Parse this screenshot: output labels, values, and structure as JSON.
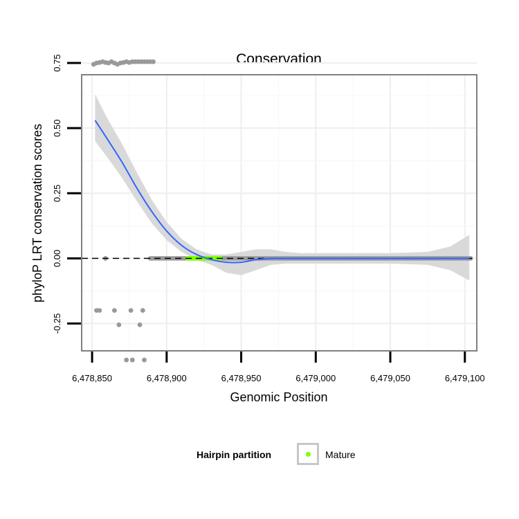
{
  "chart_data": {
    "type": "scatter",
    "title": "Conservation",
    "xlabel": "Genomic Position",
    "ylabel": "phyloP LRT conservation scores",
    "xlim": [
      6478843,
      6479108
    ],
    "ylim": [
      -0.355,
      0.705
    ],
    "x_ticks": [
      6478850,
      6478900,
      6478950,
      6479000,
      6479050,
      6479100
    ],
    "x_tick_labels": [
      "6,478,850",
      "6,478,900",
      "6,478,950",
      "6,479,000",
      "6,479,050",
      "6,479,100"
    ],
    "y_ticks": [
      -0.25,
      0.0,
      0.25,
      0.5,
      0.75
    ],
    "y_tick_labels": [
      "-0.25",
      "0.00",
      "0.25",
      "0.50",
      "0.75"
    ],
    "grid": true,
    "reference_line": {
      "y": 0,
      "style": "dashed",
      "color": "#000000"
    },
    "point_color": "#999999",
    "mature_color": "#7FFF00",
    "smooth_color": "#3366FF",
    "ribbon_color": "#d9d9d9",
    "points": [
      [
        6478851,
        0.745
      ],
      [
        6478853,
        0.75
      ],
      [
        6478855,
        0.752
      ],
      [
        6478857,
        0.755
      ],
      [
        6478859,
        0.752
      ],
      [
        6478861,
        0.75
      ],
      [
        6478863,
        0.755
      ],
      [
        6478865,
        0.75
      ],
      [
        6478867,
        0.745
      ],
      [
        6478869,
        0.75
      ],
      [
        6478871,
        0.752
      ],
      [
        6478873,
        0.755
      ],
      [
        6478875,
        0.752
      ],
      [
        6478877,
        0.755
      ],
      [
        6478879,
        0.755
      ],
      [
        6478881,
        0.755
      ],
      [
        6478883,
        0.755
      ],
      [
        6478885,
        0.755
      ],
      [
        6478887,
        0.755
      ],
      [
        6478889,
        0.755
      ],
      [
        6478891,
        0.755
      ],
      [
        6478853,
        -0.2
      ],
      [
        6478855,
        -0.2
      ],
      [
        6478865,
        -0.2
      ],
      [
        6478876,
        -0.2
      ],
      [
        6478884,
        -0.2
      ],
      [
        6478868,
        -0.255
      ],
      [
        6478882,
        -0.255
      ],
      [
        6478873,
        -0.39
      ],
      [
        6478877,
        -0.39
      ],
      [
        6478885,
        -0.39
      ],
      [
        6478859,
        0.0
      ]
    ],
    "baseline_points": {
      "x_start": 6478889,
      "x_end": 6479104,
      "step": 1,
      "y": 0.0
    },
    "mature_range": [
      6478914,
      6478936
    ],
    "smooth_line": {
      "x": [
        6478852,
        6478860,
        6478870,
        6478880,
        6478890,
        6478900,
        6478910,
        6478920,
        6478930,
        6478940,
        6478950,
        6478960,
        6478970,
        6478980,
        6478990,
        6479000,
        6479025,
        6479050,
        6479075,
        6479090,
        6479103
      ],
      "y": [
        0.53,
        0.46,
        0.37,
        0.27,
        0.18,
        0.105,
        0.05,
        0.015,
        -0.005,
        -0.015,
        -0.015,
        -0.005,
        0.0,
        0.0,
        0.0,
        0.0,
        0.0,
        0.0,
        0.0,
        0.0,
        0.0
      ],
      "lower": [
        0.45,
        0.39,
        0.31,
        0.22,
        0.135,
        0.07,
        0.025,
        -0.005,
        -0.025,
        -0.055,
        -0.065,
        -0.045,
        -0.025,
        -0.02,
        -0.02,
        -0.02,
        -0.02,
        -0.02,
        -0.025,
        -0.045,
        -0.085
      ],
      "upper": [
        0.63,
        0.54,
        0.44,
        0.33,
        0.225,
        0.14,
        0.075,
        0.035,
        0.015,
        0.015,
        0.025,
        0.035,
        0.035,
        0.025,
        0.02,
        0.02,
        0.02,
        0.02,
        0.025,
        0.045,
        0.09
      ]
    }
  },
  "legend": {
    "title": "Hairpin partition",
    "entries": [
      {
        "label": "Mature",
        "color": "#7FFF00"
      }
    ]
  }
}
